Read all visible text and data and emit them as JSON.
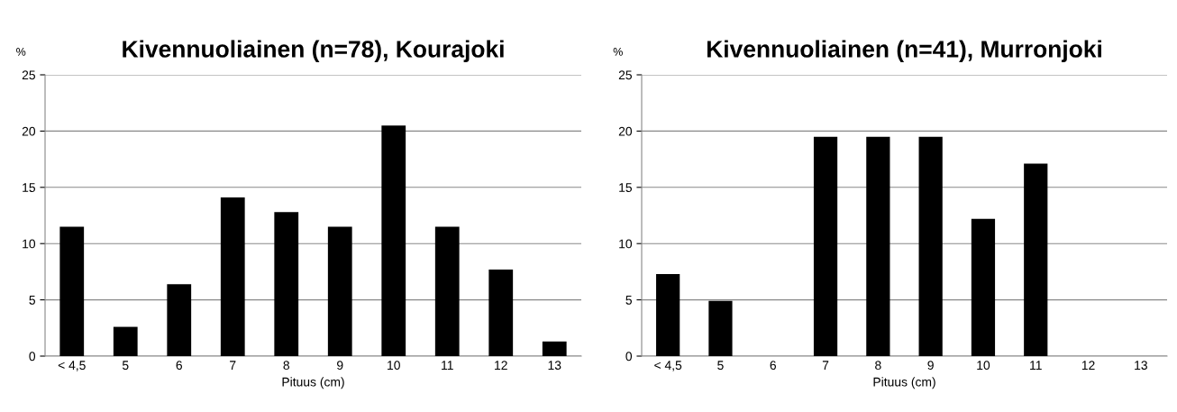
{
  "chart_data": [
    {
      "type": "bar",
      "title": "Kivennuoliainen (n=78), Kourajoki",
      "ylabel": "%",
      "xlabel": "Pituus (cm)",
      "categories": [
        "< 4,5",
        "5",
        "6",
        "7",
        "8",
        "9",
        "10",
        "11",
        "12",
        "13"
      ],
      "values": [
        11.5,
        2.6,
        6.4,
        14.1,
        12.8,
        11.5,
        20.5,
        11.5,
        7.7,
        1.3
      ],
      "color": "#000000",
      "ylim": [
        0,
        25
      ],
      "yticks": [
        0,
        5,
        10,
        15,
        20,
        25
      ],
      "grid": "y"
    },
    {
      "type": "bar",
      "title": "Kivennuoliainen (n=41), Murronjoki",
      "ylabel": "%",
      "xlabel": "Pituus (cm)",
      "categories": [
        "< 4,5",
        "5",
        "6",
        "7",
        "8",
        "9",
        "10",
        "11",
        "12",
        "13"
      ],
      "values": [
        7.3,
        4.9,
        0,
        19.5,
        19.5,
        19.5,
        12.2,
        17.1,
        0,
        0
      ],
      "color": "#000000",
      "ylim": [
        0,
        25
      ],
      "yticks": [
        0,
        5,
        10,
        15,
        20,
        25
      ],
      "grid": "y"
    }
  ]
}
